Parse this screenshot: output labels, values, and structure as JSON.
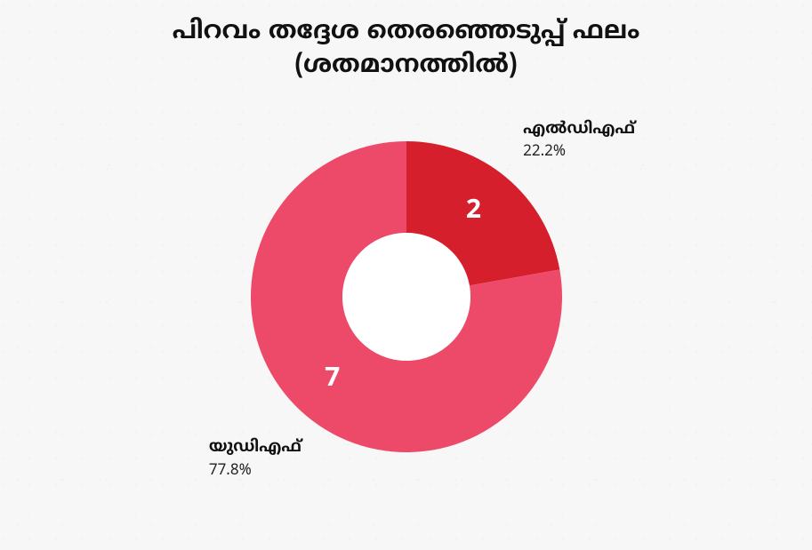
{
  "title": {
    "line1": "പിറവം തദ്ദേശ തെരഞ്ഞെടുപ്പ് ഫലം",
    "line2": "(ശതമാനത്തിൽ)",
    "fontsize": 28,
    "color": "#111111"
  },
  "chart": {
    "type": "donut",
    "background_color": "#f7f7f7",
    "outer_radius": 175,
    "inner_radius": 72,
    "center_fill": "#ffffff",
    "start_angle_deg": 0,
    "slices": [
      {
        "name": "എൽഡിഎഫ്",
        "seat_label": "2",
        "percent": 22.2,
        "percent_label": "22.2%",
        "color": "#d61f2c",
        "label_color": "#ffffff",
        "label_fontsize": 30
      },
      {
        "name": "യുഡിഎഫ്",
        "seat_label": "7",
        "percent": 77.8,
        "percent_label": "77.8%",
        "color": "#ed4a6a",
        "label_color": "#ffffff",
        "label_fontsize": 30
      }
    ],
    "outer_label_fontsize": 18,
    "outer_label_color": "#111111"
  }
}
